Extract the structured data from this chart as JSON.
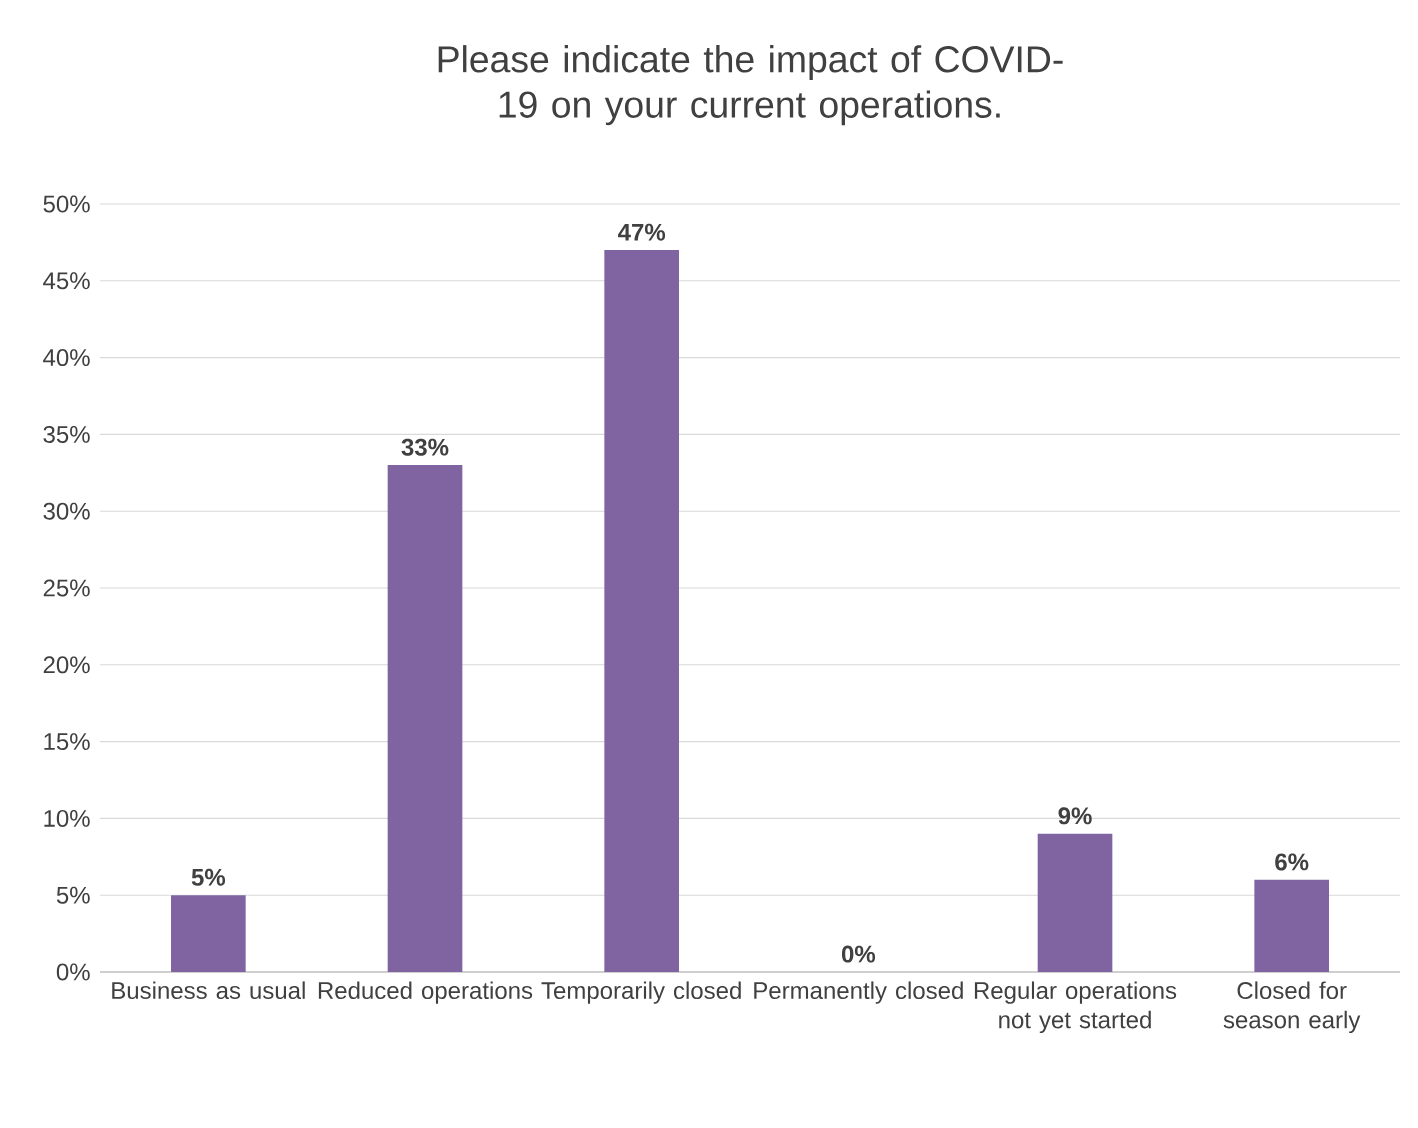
{
  "chart_data": {
    "type": "bar",
    "title": "Please indicate the impact of COVID-19 on your current operations.",
    "categories": [
      "Business as usual",
      "Reduced operations",
      "Temporarily closed",
      "Permanently closed",
      "Regular operations not yet started",
      "Closed for season early"
    ],
    "values": [
      5,
      33,
      47,
      0,
      9,
      6
    ],
    "value_labels": [
      "5%",
      "33%",
      "47%",
      "0%",
      "9%",
      "6%"
    ],
    "color": "#8064a2",
    "ylim": [
      0,
      50
    ],
    "yticks": [
      {
        "value": 0,
        "label": "0%"
      },
      {
        "value": 5,
        "label": "5%"
      },
      {
        "value": 10,
        "label": "10%"
      },
      {
        "value": 15,
        "label": "15%"
      },
      {
        "value": 20,
        "label": "20%"
      },
      {
        "value": 25,
        "label": "25%"
      },
      {
        "value": 30,
        "label": "30%"
      },
      {
        "value": 35,
        "label": "35%"
      },
      {
        "value": 40,
        "label": "40%"
      },
      {
        "value": 45,
        "label": "45%"
      },
      {
        "value": 50,
        "label": "50%"
      }
    ],
    "grid": "y"
  }
}
